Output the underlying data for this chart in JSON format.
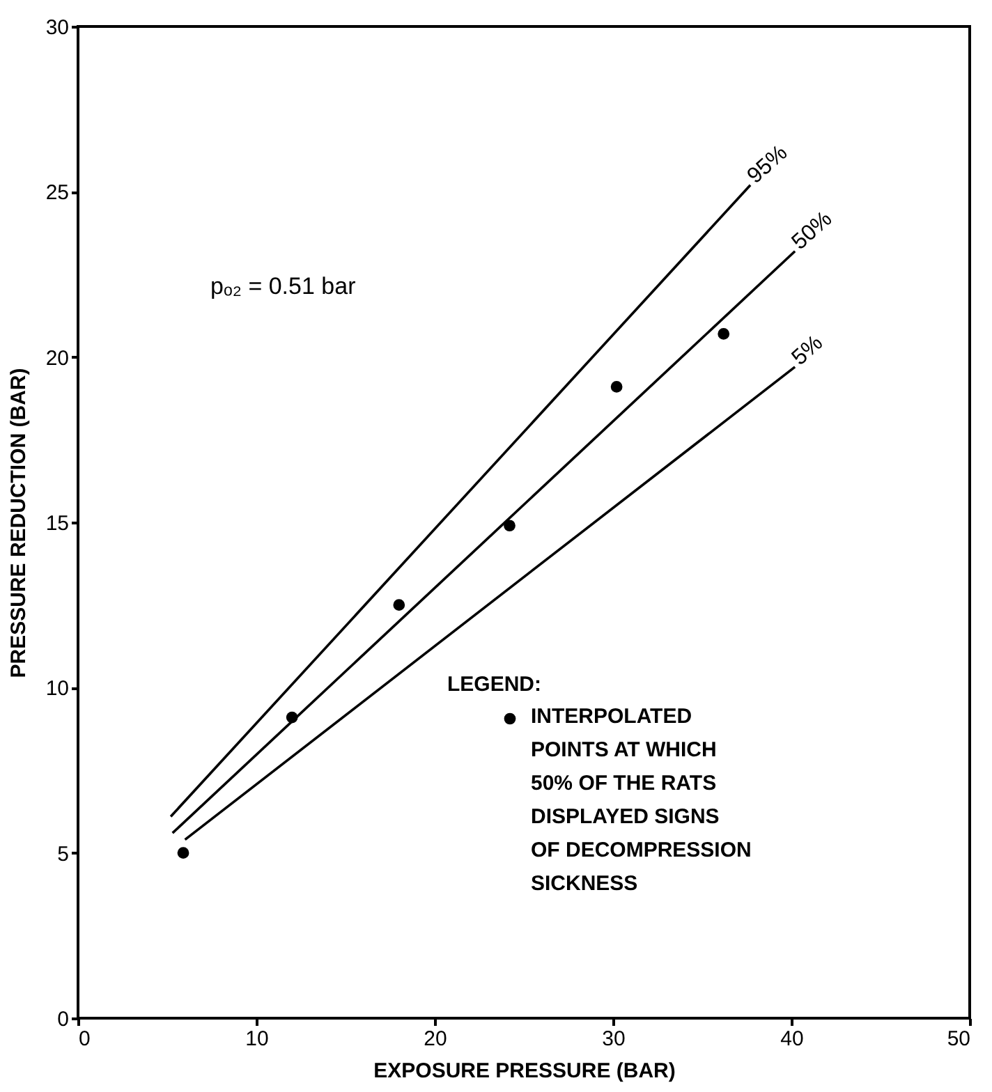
{
  "chart_data": {
    "type": "line",
    "xlabel": "EXPOSURE PRESSURE (BAR)",
    "ylabel": "PRESSURE REDUCTION (BAR)",
    "xlim": [
      0,
      50
    ],
    "xticks": [
      0,
      10,
      20,
      30,
      40,
      50
    ],
    "ylim": [
      0,
      30
    ],
    "yticks": [
      0,
      5,
      10,
      15,
      20,
      25,
      30
    ],
    "grid": false,
    "legend": "bottom right",
    "legend_title": "LEGEND:",
    "annotations": [
      "pₒ₂ = 0.51 bar"
    ],
    "series": [
      {
        "name": "95%",
        "color": "#000000",
        "x": [
          5.2,
          37.7
        ],
        "values": [
          6.1,
          25.2
        ]
      },
      {
        "name": "50%",
        "color": "#000000",
        "x": [
          5.3,
          40.2
        ],
        "values": [
          5.6,
          23.2
        ]
      },
      {
        "name": "5%",
        "color": "#000000",
        "x": [
          6.0,
          40.2
        ],
        "values": [
          5.4,
          19.7
        ]
      },
      {
        "name": "INTERPOLATED POINTS AT WHICH 50% OF THE RATS DISPLAYED SIGNS OF DECOMPRESSION SICKNESS",
        "type": "scatter",
        "marker": "circle",
        "color": "#000000",
        "x": [
          5.9,
          12.0,
          18.0,
          24.2,
          30.2,
          36.2
        ],
        "values": [
          5.0,
          9.1,
          12.5,
          14.9,
          19.1,
          20.7
        ]
      }
    ]
  }
}
